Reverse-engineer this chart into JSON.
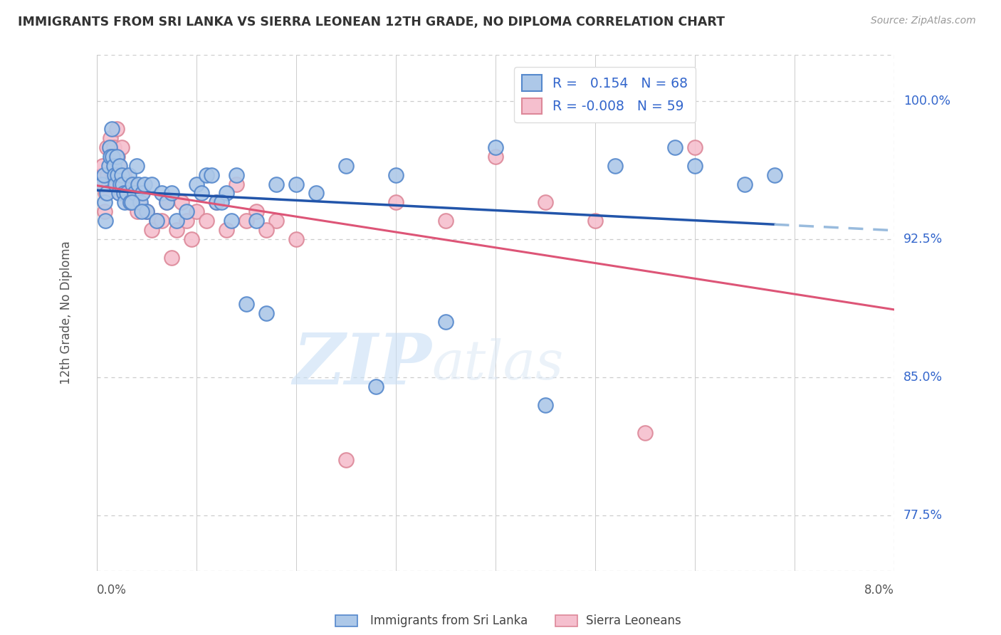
{
  "title": "IMMIGRANTS FROM SRI LANKA VS SIERRA LEONEAN 12TH GRADE, NO DIPLOMA CORRELATION CHART",
  "source": "Source: ZipAtlas.com",
  "ylabel": "12th Grade, No Diploma",
  "yticks": [
    77.5,
    85.0,
    92.5,
    100.0
  ],
  "ytick_labels": [
    "77.5%",
    "85.0%",
    "92.5%",
    "100.0%"
  ],
  "xlim": [
    0.0,
    8.0
  ],
  "ylim": [
    74.5,
    102.5
  ],
  "legend_R1": "0.154",
  "legend_R2": "-0.008",
  "legend_N1": "68",
  "legend_N2": "59",
  "sri_lanka_color": "#adc8e8",
  "sri_lanka_edge": "#5588cc",
  "sierra_leone_color": "#f5bfce",
  "sierra_leone_edge": "#dd8899",
  "trend_sri_lanka_color": "#2255aa",
  "trend_sierra_leone_color": "#dd5577",
  "trend_sri_lanka_dashed_color": "#99bbdd",
  "watermark_zip": "ZIP",
  "watermark_atlas": "atlas",
  "sri_lanka_x": [
    0.05,
    0.07,
    0.08,
    0.09,
    0.1,
    0.12,
    0.13,
    0.14,
    0.15,
    0.16,
    0.17,
    0.18,
    0.19,
    0.2,
    0.21,
    0.22,
    0.23,
    0.24,
    0.25,
    0.26,
    0.27,
    0.28,
    0.3,
    0.32,
    0.34,
    0.36,
    0.38,
    0.4,
    0.42,
    0.44,
    0.46,
    0.48,
    0.5,
    0.55,
    0.6,
    0.65,
    0.7,
    0.75,
    0.8,
    0.9,
    1.0,
    1.1,
    1.2,
    1.3,
    1.4,
    1.5,
    1.6,
    1.7,
    1.8,
    2.0,
    2.2,
    2.5,
    2.8,
    3.0,
    3.5,
    4.0,
    4.5,
    5.2,
    5.8,
    6.0,
    6.5,
    6.8,
    1.05,
    1.15,
    1.25,
    1.35,
    0.35,
    0.45
  ],
  "sri_lanka_y": [
    95.5,
    96.0,
    94.5,
    93.5,
    95.0,
    96.5,
    97.5,
    97.0,
    98.5,
    97.0,
    96.5,
    96.0,
    95.5,
    97.0,
    96.0,
    95.0,
    96.5,
    95.5,
    96.0,
    95.5,
    95.0,
    94.5,
    95.0,
    96.0,
    94.5,
    95.5,
    95.0,
    96.5,
    95.5,
    94.5,
    95.0,
    95.5,
    94.0,
    95.5,
    93.5,
    95.0,
    94.5,
    95.0,
    93.5,
    94.0,
    95.5,
    96.0,
    94.5,
    95.0,
    96.0,
    89.0,
    93.5,
    88.5,
    95.5,
    95.5,
    95.0,
    96.5,
    84.5,
    96.0,
    88.0,
    97.5,
    83.5,
    96.5,
    97.5,
    96.5,
    95.5,
    96.0,
    95.0,
    96.0,
    94.5,
    93.5,
    94.5,
    94.0
  ],
  "sierra_leone_x": [
    0.05,
    0.06,
    0.07,
    0.08,
    0.09,
    0.1,
    0.11,
    0.12,
    0.13,
    0.14,
    0.15,
    0.16,
    0.17,
    0.18,
    0.19,
    0.2,
    0.21,
    0.22,
    0.23,
    0.24,
    0.25,
    0.27,
    0.29,
    0.31,
    0.33,
    0.35,
    0.37,
    0.39,
    0.41,
    0.43,
    0.45,
    0.5,
    0.6,
    0.7,
    0.8,
    0.9,
    1.0,
    1.2,
    1.4,
    1.6,
    1.8,
    2.0,
    2.5,
    3.0,
    3.5,
    4.0,
    4.5,
    5.0,
    5.5,
    6.0,
    0.55,
    0.65,
    0.75,
    0.85,
    0.95,
    1.1,
    1.3,
    1.5,
    1.7
  ],
  "sierra_leone_y": [
    96.0,
    96.5,
    95.5,
    94.0,
    95.0,
    97.5,
    96.0,
    95.5,
    97.5,
    98.0,
    97.0,
    96.0,
    97.5,
    95.5,
    96.0,
    98.5,
    97.0,
    96.5,
    95.0,
    96.0,
    97.5,
    96.0,
    95.5,
    95.0,
    94.5,
    95.5,
    94.5,
    95.0,
    94.0,
    94.5,
    95.0,
    94.0,
    93.5,
    94.5,
    93.0,
    93.5,
    94.0,
    94.5,
    95.5,
    94.0,
    93.5,
    92.5,
    80.5,
    94.5,
    93.5,
    97.0,
    94.5,
    93.5,
    82.0,
    97.5,
    93.0,
    93.5,
    91.5,
    94.5,
    92.5,
    93.5,
    93.0,
    93.5,
    93.0
  ]
}
